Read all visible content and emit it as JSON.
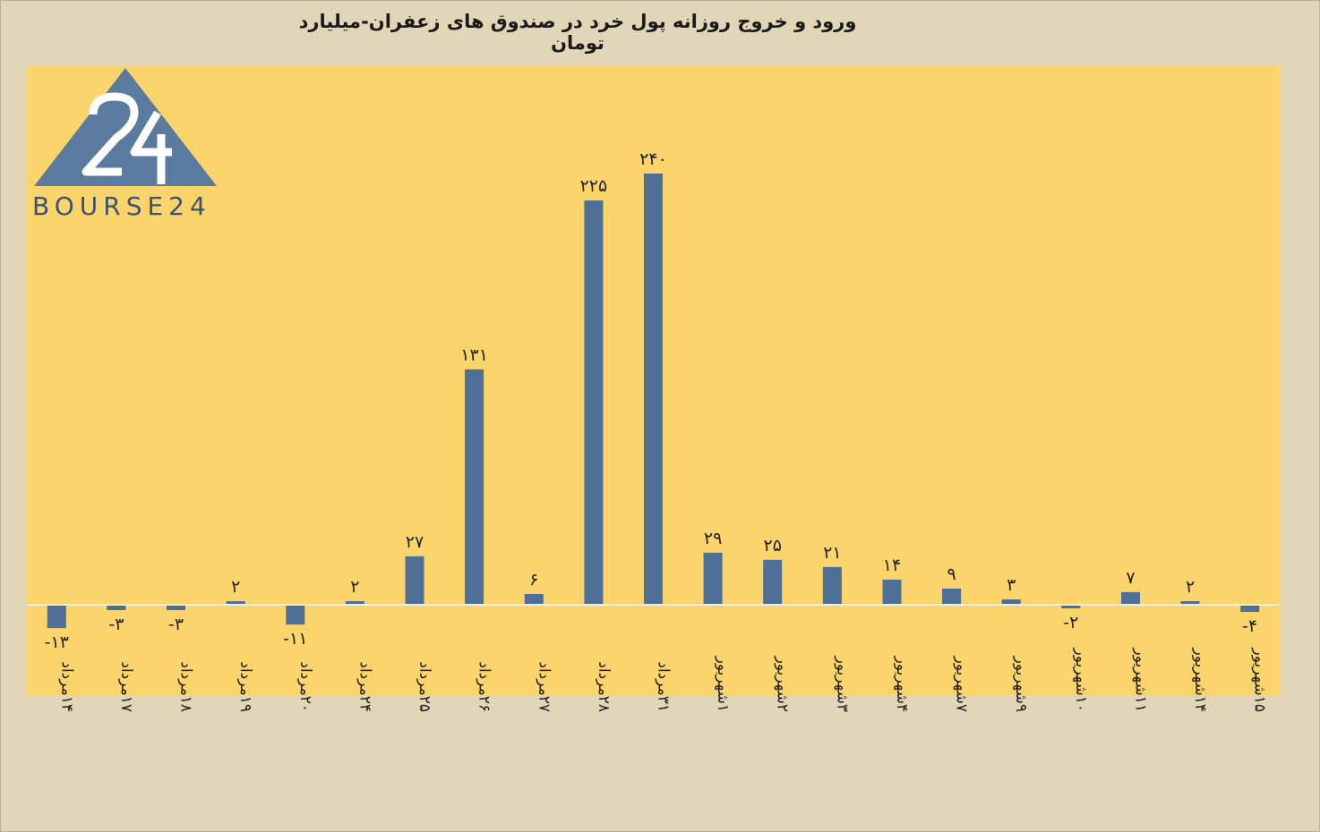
{
  "colors": {
    "background": "#e2d6b8",
    "plot_area": "#fbd46b",
    "bar": "#4e6f96",
    "baseline": "#f2eee2",
    "logo": "#5a7aa0"
  },
  "logo": {
    "mark": "24",
    "text": "BOURSE24"
  },
  "chart_data": {
    "type": "bar",
    "title": "ورود و خروج روزانه پول خرد در صندوق های زعفران-میلیارد تومان",
    "xlabel": "",
    "ylabel": "",
    "ylim": [
      -45,
      265
    ],
    "grid": false,
    "legend": "none",
    "categories": [
      "۱۴مرداد",
      "۱۷مرداد",
      "۱۸مرداد",
      "۱۹مرداد",
      "۲۰مرداد",
      "۲۴مرداد",
      "۲۵مرداد",
      "۲۶مرداد",
      "۲۷مرداد",
      "۲۸مرداد",
      "۳۱مرداد",
      "۱شهریور",
      "۲شهریور",
      "۳شهریور",
      "۴شهریور",
      "۷شهریور",
      "۹شهریور",
      "۱۰شهریور",
      "۱۱شهریور",
      "۱۴شهریور",
      "۱۵شهریور"
    ],
    "values": [
      -13,
      -3,
      -3,
      2,
      -11,
      2,
      27,
      131,
      6,
      225,
      240,
      29,
      25,
      21,
      14,
      9,
      3,
      -2,
      7,
      2,
      -4
    ],
    "data_labels": [
      "-۱۳",
      "-۳",
      "-۳",
      "۲",
      "-۱۱",
      "۲",
      "۲۷",
      "۱۳۱",
      "۶",
      "۲۲۵",
      "۲۴۰",
      "۲۹",
      "۲۵",
      "۲۱",
      "۱۴",
      "۹",
      "۳",
      "-۲",
      "۷",
      "۲",
      "-۴"
    ]
  }
}
